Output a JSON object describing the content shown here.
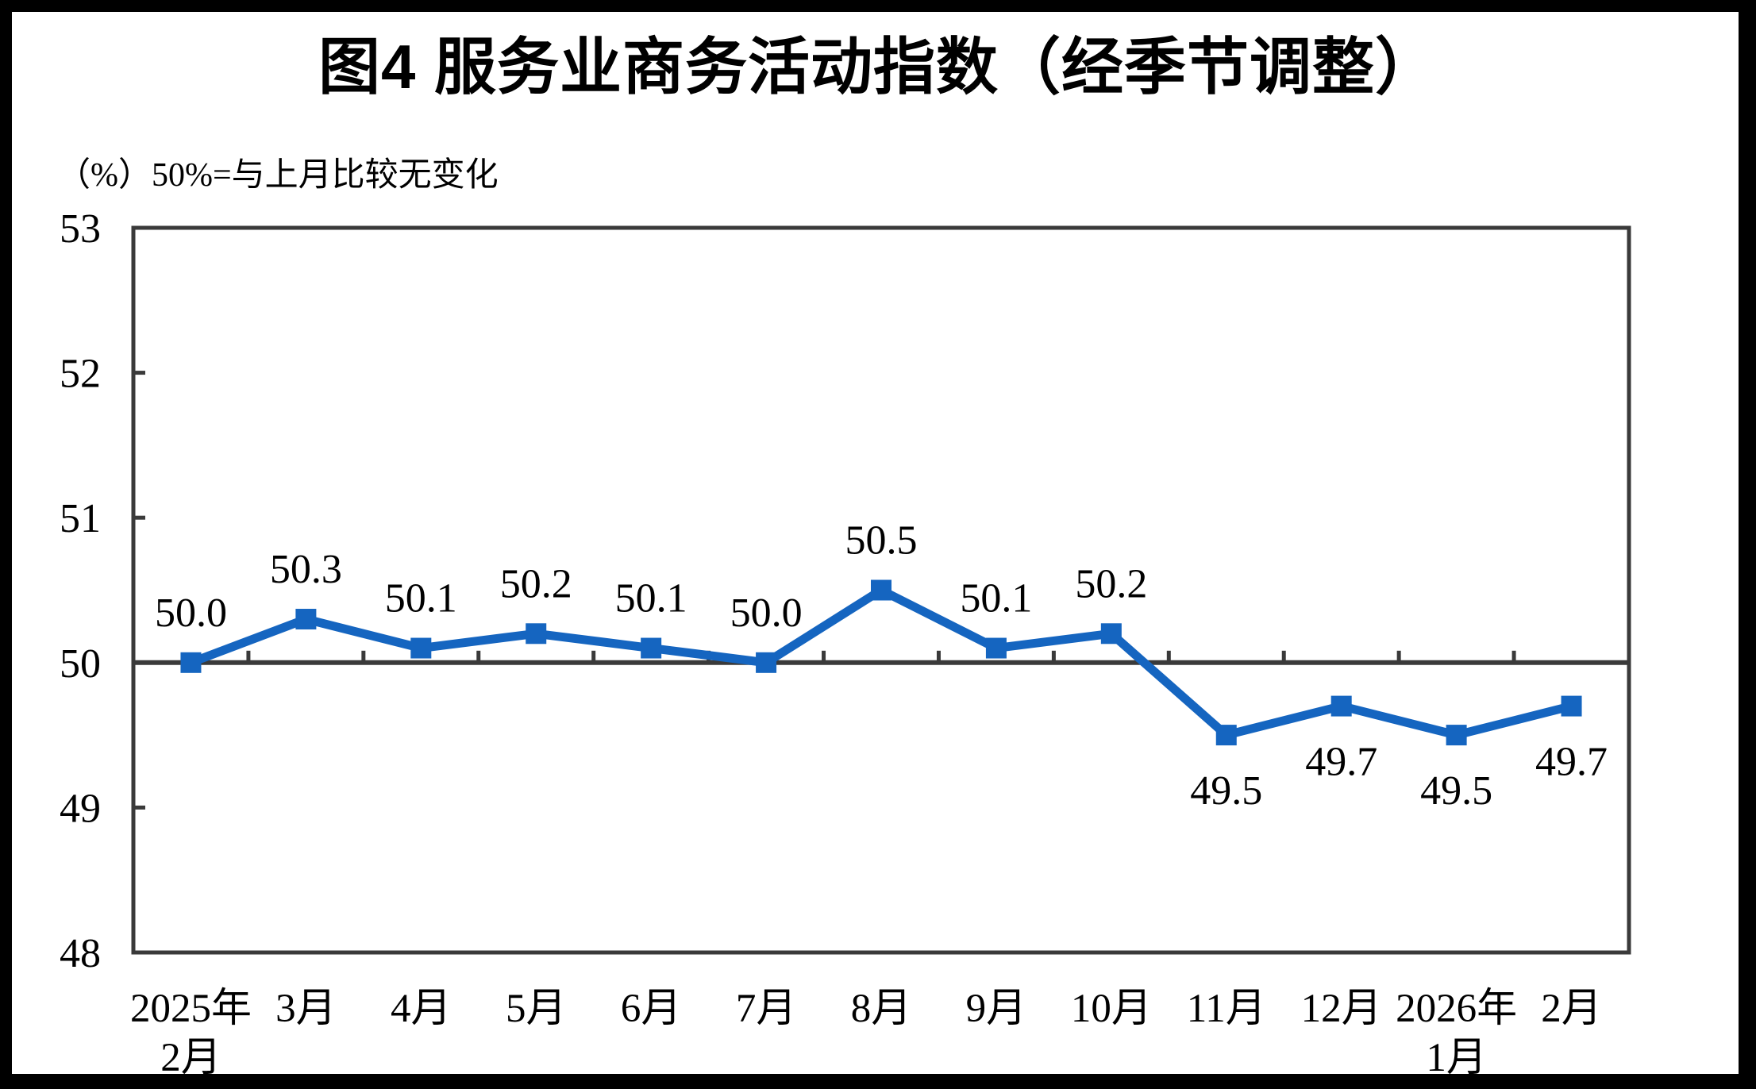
{
  "page": {
    "title": "图4 服务业商务活动指数（经季节调整）",
    "unit_note": "（%）50%=与上月比较无变化"
  },
  "chart_data": {
    "type": "line",
    "title": "图4 服务业商务活动指数（经季节调整）",
    "unit_note": "（%）50%=与上月比较无变化",
    "categories": [
      "2025年\n2月",
      "3月",
      "4月",
      "5月",
      "6月",
      "7月",
      "8月",
      "9月",
      "10月",
      "11月",
      "12月",
      "2026年\n1月",
      "2月"
    ],
    "values": [
      50.0,
      50.3,
      50.1,
      50.2,
      50.1,
      50.0,
      50.5,
      50.1,
      50.2,
      49.5,
      49.7,
      49.5,
      49.7
    ],
    "data_labels": [
      "50.0",
      "50.3",
      "50.1",
      "50.2",
      "50.1",
      "50.0",
      "50.5",
      "50.1",
      "50.2",
      "49.5",
      "49.7",
      "49.5",
      "49.7"
    ],
    "ylim": [
      48,
      53
    ],
    "yticks": [
      48,
      49,
      50,
      51,
      52,
      53
    ],
    "reference_line": 50,
    "grid": false,
    "legend": "none",
    "colors": {
      "line": "#1565C0",
      "marker": "#1565C0",
      "axis": "#3a3a3a",
      "text": "#000000",
      "frame": "#000000",
      "background": "#ffffff"
    }
  }
}
